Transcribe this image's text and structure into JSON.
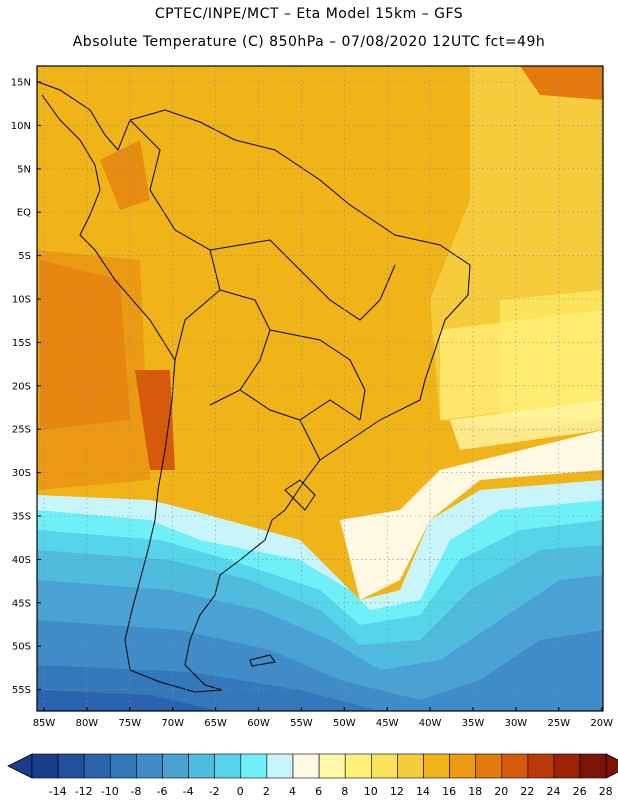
{
  "header": {
    "line1": "CPTEC/INPE/MCT –   Eta Model 15km – GFS",
    "line2": "Absolute Temperature (C) 850hPa – 07/08/2020 12UTC fct=49h"
  },
  "map": {
    "lat_labels": [
      "15N",
      "10N",
      "5N",
      "EQ",
      "5S",
      "10S",
      "15S",
      "20S",
      "25S",
      "30S",
      "35S",
      "40S",
      "45S",
      "50S",
      "55S"
    ],
    "lon_labels": [
      "85W",
      "80W",
      "75W",
      "70W",
      "65W",
      "60W",
      "55W",
      "50W",
      "45W",
      "40W",
      "35W",
      "30W",
      "25W",
      "20W"
    ]
  },
  "colorbar": {
    "labels": [
      "-14",
      "-12",
      "-10",
      "-8",
      "-6",
      "-4",
      "-2",
      "0",
      "2",
      "4",
      "6",
      "8",
      "10",
      "12",
      "14",
      "16",
      "18",
      "20",
      "22",
      "24",
      "26",
      "28"
    ],
    "colors": [
      "#1a3c8c",
      "#23509e",
      "#2a64ae",
      "#3478bc",
      "#3f8cc8",
      "#4aa2d4",
      "#4fbcdf",
      "#55d4ea",
      "#6ff0f8",
      "#c8f4fc",
      "#fff8e2",
      "#fff8a8",
      "#fff07a",
      "#fce45a",
      "#f6cc3c",
      "#f0b418",
      "#ec9a14",
      "#e47a0e",
      "#d65a0a",
      "#bc3a08",
      "#9e2206",
      "#7a1406"
    ]
  }
}
